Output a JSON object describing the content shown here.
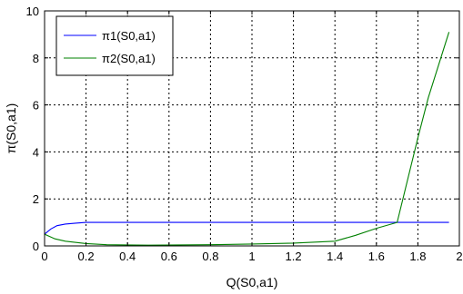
{
  "chart_data": {
    "type": "line",
    "title": "",
    "xlabel": "Q(S0,a1)",
    "ylabel": "π(S0,a1)",
    "xlim": [
      0,
      2
    ],
    "ylim": [
      0,
      10
    ],
    "xticks": [
      "0",
      "0.2",
      "0.4",
      "0.6",
      "0.8",
      "1",
      "1.2",
      "1.4",
      "1.6",
      "1.8",
      "2"
    ],
    "yticks": [
      "0",
      "2",
      "4",
      "6",
      "8",
      "10"
    ],
    "grid": true,
    "legend_position": "top-left",
    "series": [
      {
        "name": "π1(S0,a1)",
        "color": "#0000ff",
        "x": [
          0,
          0.03,
          0.06,
          0.1,
          0.15,
          0.2,
          0.5,
          1.0,
          1.5,
          1.7,
          1.95
        ],
        "y": [
          0.5,
          0.72,
          0.86,
          0.93,
          0.97,
          1.0,
          1.0,
          1.0,
          1.0,
          1.0,
          1.0
        ]
      },
      {
        "name": "π2(S0,a1)",
        "color": "#008000",
        "x": [
          0,
          0.05,
          0.1,
          0.2,
          0.3,
          0.5,
          0.8,
          1.0,
          1.2,
          1.4,
          1.5,
          1.6,
          1.7,
          1.75,
          1.8,
          1.85,
          1.9,
          1.95
        ],
        "y": [
          0.5,
          0.3,
          0.2,
          0.1,
          0.05,
          0.03,
          0.05,
          0.08,
          0.12,
          0.2,
          0.45,
          0.75,
          1.0,
          2.8,
          4.6,
          6.3,
          7.7,
          9.1
        ]
      }
    ]
  }
}
